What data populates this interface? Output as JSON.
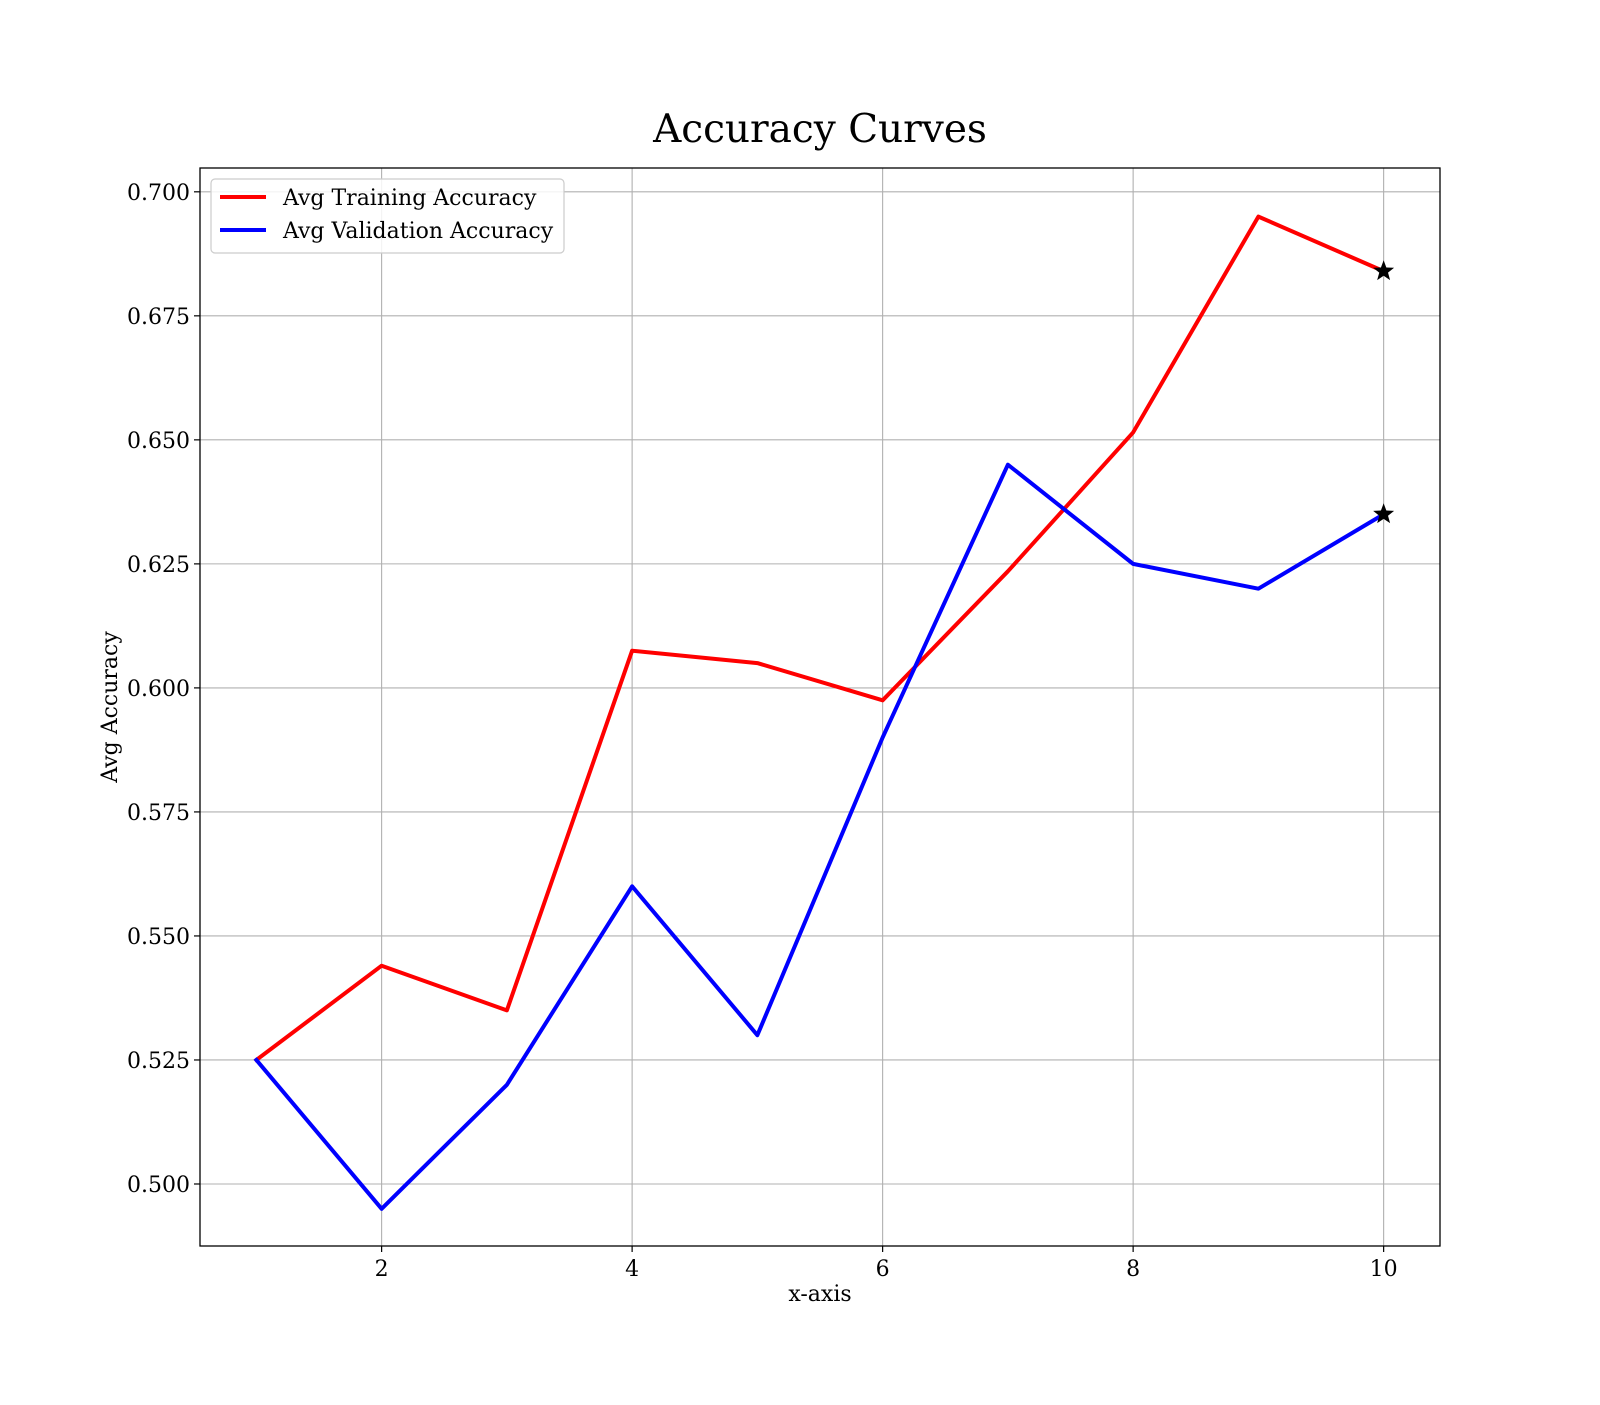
{
  "chart_data": {
    "type": "line",
    "title": "Accuracy Curves",
    "xlabel": "x-axis",
    "ylabel": "Avg Accuracy",
    "x": [
      1,
      2,
      3,
      4,
      5,
      6,
      7,
      8,
      9,
      10
    ],
    "xlim": [
      0.55,
      10.45
    ],
    "ylim": [
      0.4875,
      0.7048
    ],
    "xticks": [
      2,
      4,
      6,
      8,
      10
    ],
    "xtick_labels": [
      "2",
      "4",
      "6",
      "8",
      "10"
    ],
    "yticks": [
      0.5,
      0.525,
      0.55,
      0.575,
      0.6,
      0.625,
      0.65,
      0.675,
      0.7
    ],
    "ytick_labels": [
      "0.500",
      "0.525",
      "0.550",
      "0.575",
      "0.600",
      "0.625",
      "0.650",
      "0.675",
      "0.700"
    ],
    "grid": true,
    "legend_position": "upper-left",
    "series": [
      {
        "name": "Avg Training Accuracy",
        "color": "#ff0000",
        "values": [
          0.525,
          0.544,
          0.535,
          0.6075,
          0.605,
          0.5975,
          0.6235,
          0.6515,
          0.695,
          0.684
        ],
        "end_marker": "star"
      },
      {
        "name": "Avg Validation Accuracy",
        "color": "#0000ff",
        "values": [
          0.525,
          0.495,
          0.52,
          0.56,
          0.53,
          0.59,
          0.645,
          0.625,
          0.62,
          0.635
        ],
        "end_marker": "star"
      }
    ],
    "colors": {
      "grid": "#b0b0b0",
      "axes": "#000000",
      "marker": "#000000"
    }
  }
}
